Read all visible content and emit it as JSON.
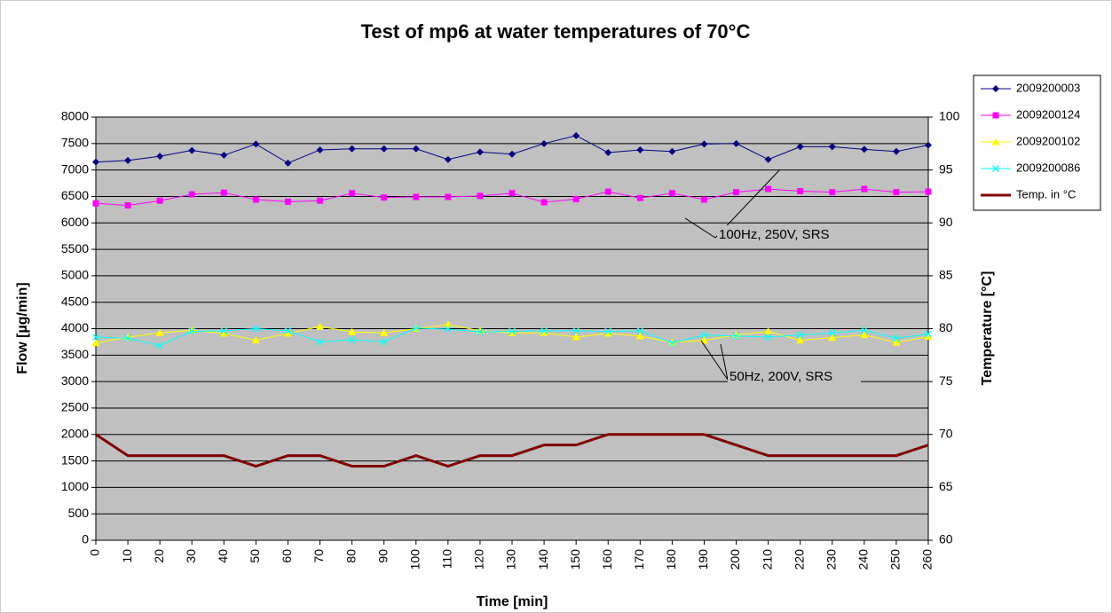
{
  "chart_data": {
    "type": "line",
    "title": "Test of mp6 at water temperatures of 70°C",
    "x_label": "Time [min]",
    "y_label": "Flow [µg/min]",
    "y2_label": "Temperature [°C]",
    "x": [
      0,
      10,
      20,
      30,
      40,
      50,
      60,
      70,
      80,
      90,
      100,
      110,
      120,
      130,
      140,
      150,
      160,
      170,
      180,
      190,
      200,
      210,
      220,
      230,
      240,
      250,
      260
    ],
    "xlim": [
      0,
      260
    ],
    "xticks": [
      0,
      10,
      20,
      30,
      40,
      50,
      60,
      70,
      80,
      90,
      100,
      110,
      120,
      130,
      140,
      150,
      160,
      170,
      180,
      190,
      200,
      210,
      220,
      230,
      240,
      250,
      260
    ],
    "ylim": [
      0,
      8000
    ],
    "yticks": [
      0,
      500,
      1000,
      1500,
      2000,
      2500,
      3000,
      3500,
      4000,
      4500,
      5000,
      5500,
      6000,
      6500,
      7000,
      7500,
      8000
    ],
    "y2lim": [
      60,
      100
    ],
    "y2ticks": [
      60,
      65,
      70,
      75,
      80,
      85,
      90,
      95,
      100
    ],
    "grid": true,
    "legend": "right",
    "annotations": [
      "100Hz, 250V, SRS",
      "50Hz, 200V, SRS"
    ],
    "series": [
      {
        "name": "2009200003",
        "color": "#000080",
        "marker": "diamond",
        "values": [
          7150,
          7180,
          7260,
          7370,
          7280,
          7490,
          7130,
          7380,
          7400,
          7400,
          7400,
          7200,
          7340,
          7300,
          7500,
          7650,
          7330,
          7380,
          7350,
          7490,
          7500,
          7200,
          7440,
          7440,
          7390,
          7350,
          7470
        ]
      },
      {
        "name": "2009200124",
        "color": "#ff00ff",
        "marker": "square",
        "values": [
          6370,
          6330,
          6420,
          6540,
          6570,
          6440,
          6400,
          6420,
          6560,
          6480,
          6490,
          6490,
          6510,
          6560,
          6390,
          6450,
          6590,
          6470,
          6560,
          6440,
          6580,
          6640,
          6600,
          6580,
          6640,
          6580,
          6590
        ]
      },
      {
        "name": "2009200102",
        "color": "#ffff00",
        "marker": "triangle",
        "values": [
          3730,
          3840,
          3920,
          3970,
          3910,
          3780,
          3910,
          4040,
          3940,
          3920,
          4000,
          4080,
          3960,
          3920,
          3920,
          3840,
          3910,
          3860,
          3740,
          3780,
          3880,
          3950,
          3780,
          3830,
          3880,
          3740,
          3850
        ]
      },
      {
        "name": "2009200086",
        "color": "#00ffff",
        "marker": "x",
        "values": [
          3840,
          3820,
          3680,
          3950,
          3960,
          4000,
          3960,
          3750,
          3790,
          3750,
          4010,
          3990,
          3940,
          3950,
          3960,
          3960,
          3950,
          3960,
          3730,
          3880,
          3860,
          3840,
          3880,
          3920,
          3970,
          3820,
          3900
        ]
      },
      {
        "name": "Temp. in °C",
        "color": "#800000",
        "marker": "none",
        "axis": "y2",
        "values": [
          70,
          68,
          68,
          68,
          68,
          67,
          68,
          68,
          67,
          67,
          68,
          67,
          68,
          68,
          69,
          69,
          70,
          70,
          70,
          70,
          69,
          68,
          68,
          68,
          68,
          68,
          69
        ]
      }
    ]
  }
}
